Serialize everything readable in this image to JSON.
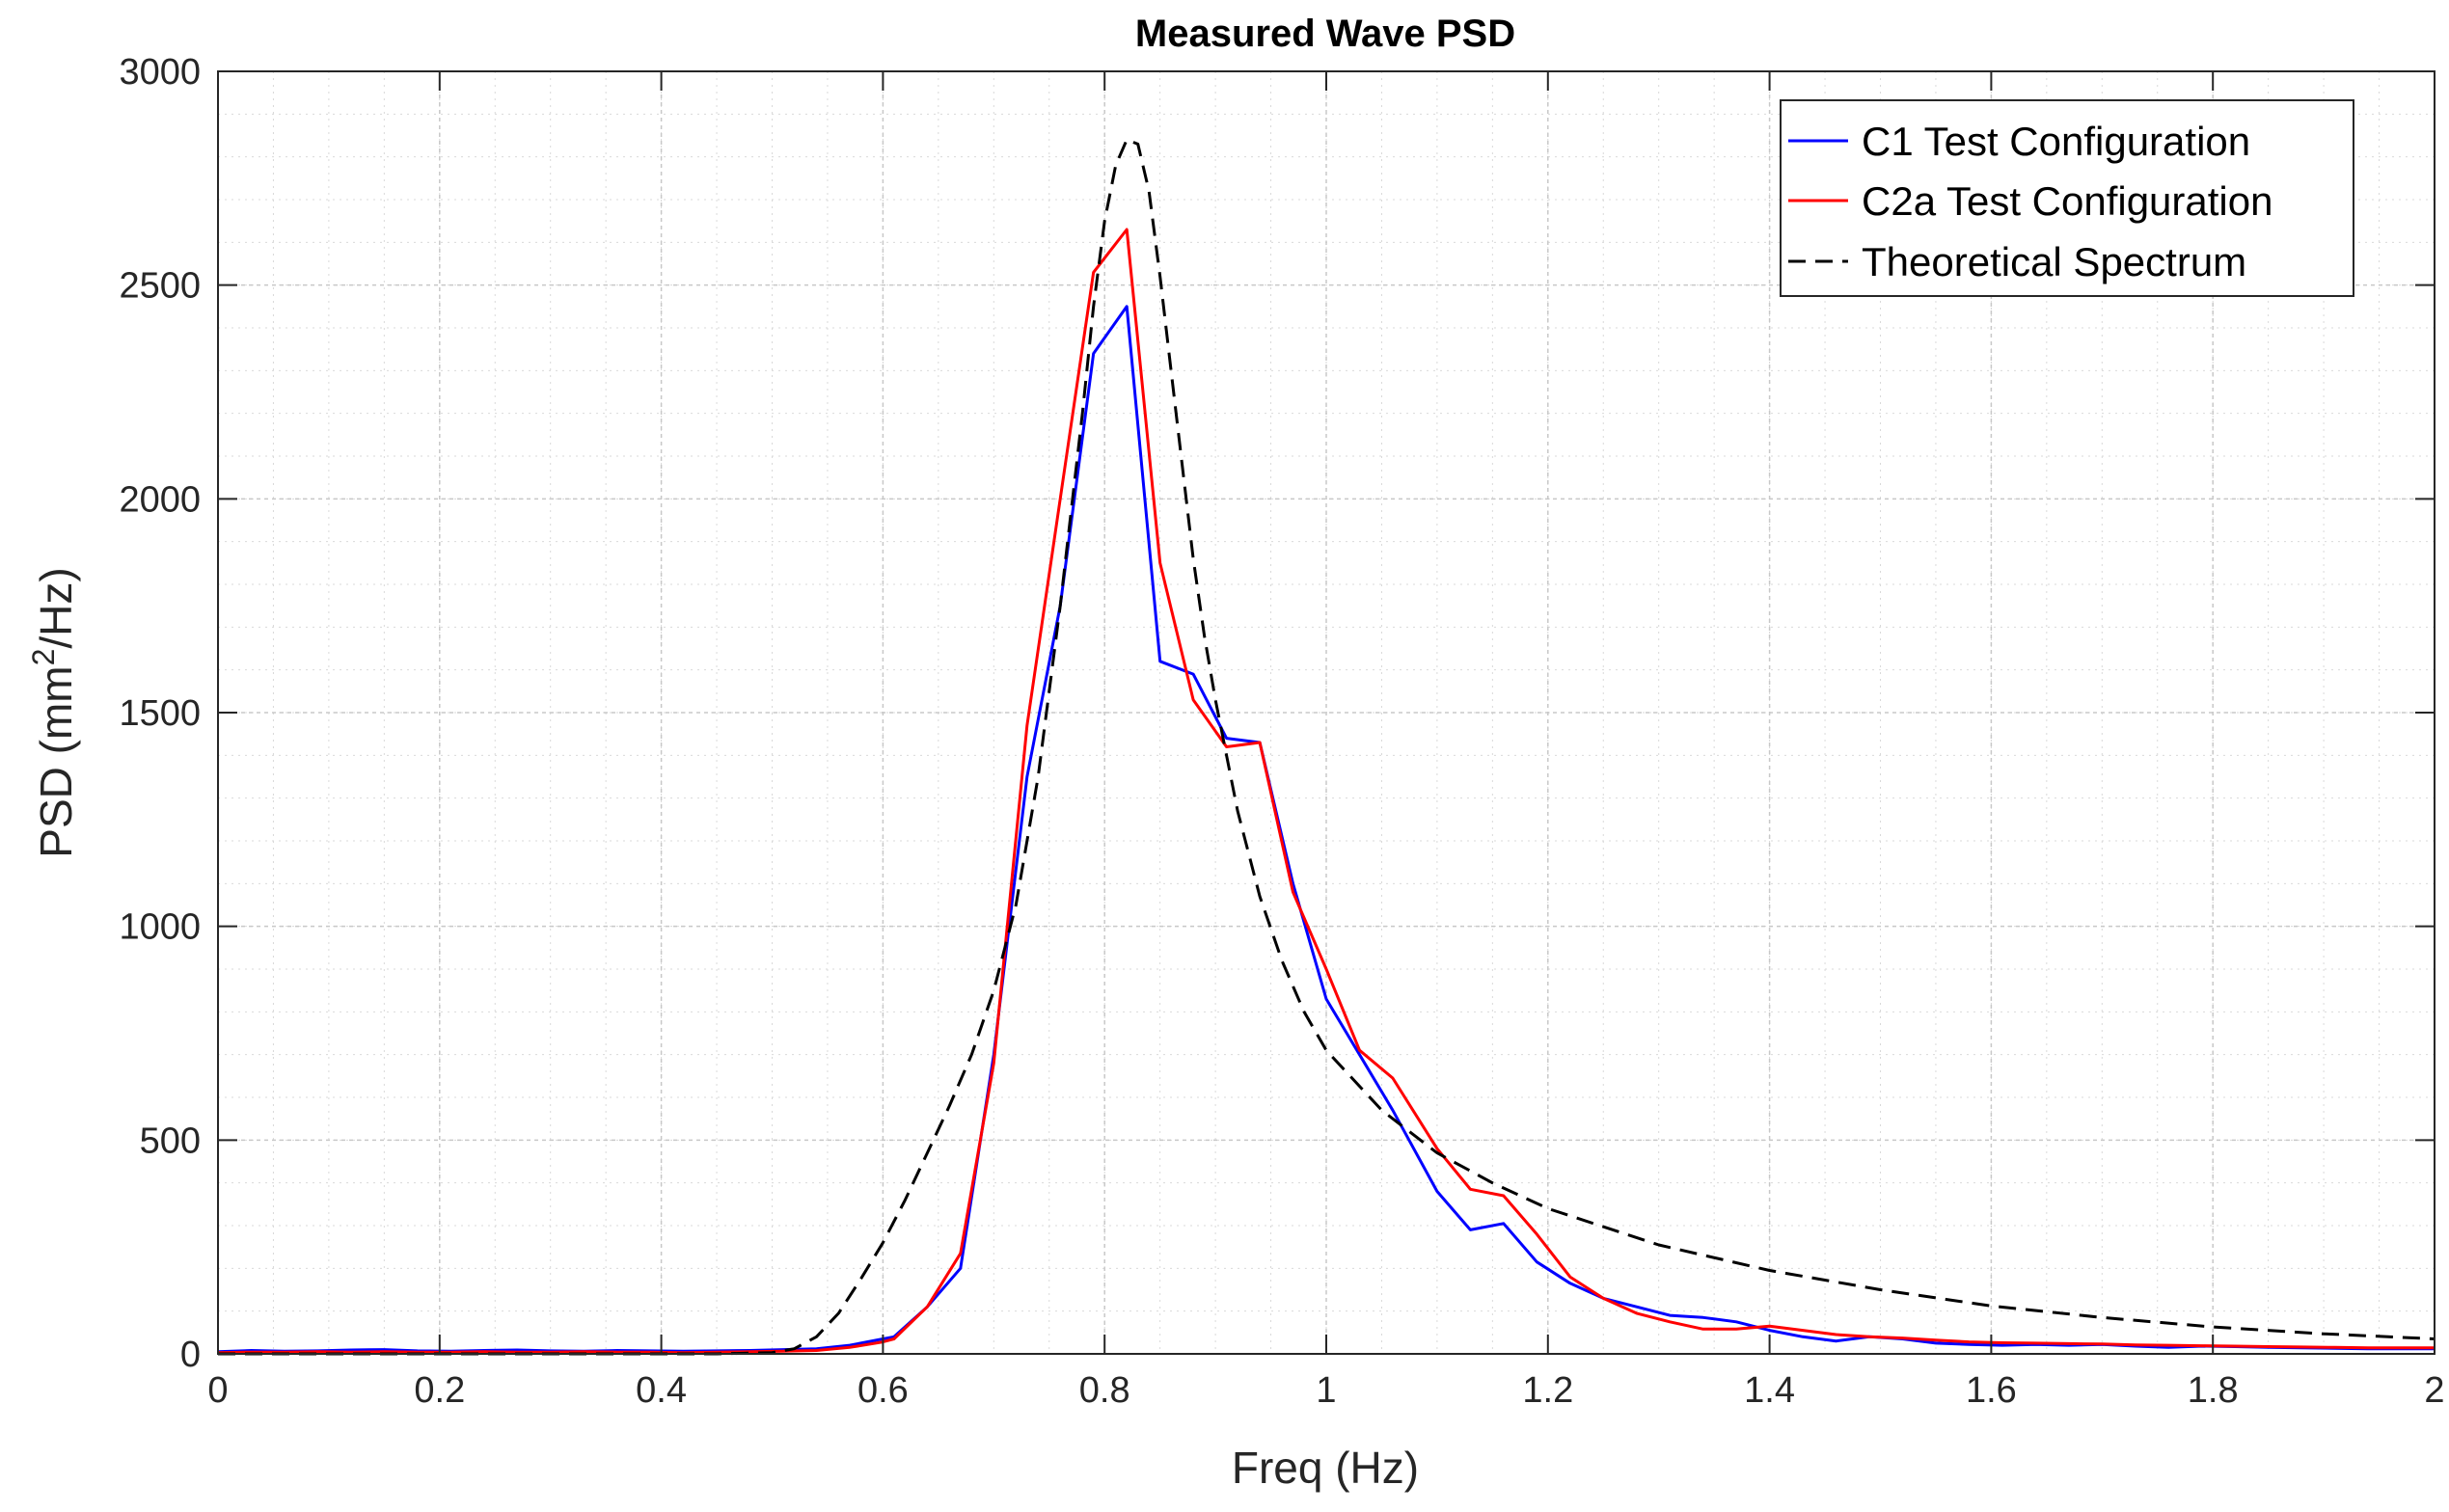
{
  "chart_data": {
    "type": "line",
    "title": "Measured Wave PSD",
    "xlabel": "Freq (Hz)",
    "ylabel": {
      "base": "PSD (mm",
      "sup": "2",
      "tail": "/Hz)"
    },
    "xlim": [
      0,
      2
    ],
    "ylim": [
      0,
      3000
    ],
    "xticks": [
      0,
      0.2,
      0.4,
      0.6,
      0.8,
      1,
      1.2,
      1.4,
      1.6,
      1.8,
      2
    ],
    "xtick_labels": [
      "0",
      "0.2",
      "0.4",
      "0.6",
      "0.8",
      "1",
      "1.2",
      "1.4",
      "1.6",
      "1.8",
      "2"
    ],
    "yticks": [
      0,
      500,
      1000,
      1500,
      2000,
      2500,
      3000
    ],
    "ytick_labels": [
      "0",
      "500",
      "1000",
      "1500",
      "2000",
      "2500",
      "3000"
    ],
    "grid": true,
    "minor_grid": true,
    "legend_position": "top-right",
    "series": [
      {
        "name": "C1 Test Configuration",
        "color": "#0000ff",
        "dash": "solid",
        "x": [
          0,
          0.03,
          0.06,
          0.09,
          0.12,
          0.15,
          0.18,
          0.21,
          0.24,
          0.27,
          0.3,
          0.33,
          0.36,
          0.39,
          0.42,
          0.45,
          0.48,
          0.51,
          0.54,
          0.57,
          0.6,
          0.61,
          0.64,
          0.67,
          0.7,
          0.73,
          0.76,
          0.79,
          0.82,
          0.85,
          0.88,
          0.91,
          0.94,
          0.97,
          1.0,
          1.03,
          1.06,
          1.1,
          1.13,
          1.16,
          1.19,
          1.22,
          1.25,
          1.28,
          1.31,
          1.34,
          1.37,
          1.4,
          1.43,
          1.46,
          1.49,
          1.52,
          1.55,
          1.58,
          1.61,
          1.64,
          1.67,
          1.7,
          1.73,
          1.76,
          1.79,
          1.82,
          1.85,
          1.88,
          1.91,
          1.94,
          1.97,
          2.0
        ],
        "y": [
          5,
          8,
          6,
          7,
          9,
          10,
          7,
          6,
          8,
          9,
          7,
          6,
          8,
          7,
          6,
          7,
          8,
          10,
          12,
          20,
          35,
          40,
          110,
          200,
          700,
          1350,
          1750,
          2340,
          2450,
          1620,
          1590,
          1440,
          1430,
          1100,
          830,
          700,
          570,
          380,
          290,
          305,
          215,
          165,
          130,
          110,
          90,
          85,
          75,
          55,
          40,
          30,
          40,
          35,
          25,
          22,
          20,
          22,
          20,
          22,
          18,
          15,
          18,
          17,
          15,
          14,
          13,
          12,
          12,
          12
        ]
      },
      {
        "name": "C2a Test Configuration",
        "color": "#ff0000",
        "dash": "solid",
        "x": [
          0,
          0.03,
          0.06,
          0.09,
          0.12,
          0.15,
          0.18,
          0.21,
          0.24,
          0.27,
          0.3,
          0.33,
          0.36,
          0.39,
          0.42,
          0.45,
          0.48,
          0.51,
          0.54,
          0.57,
          0.6,
          0.61,
          0.64,
          0.67,
          0.7,
          0.73,
          0.76,
          0.79,
          0.82,
          0.85,
          0.88,
          0.91,
          0.94,
          0.97,
          1.0,
          1.03,
          1.06,
          1.1,
          1.13,
          1.16,
          1.19,
          1.22,
          1.25,
          1.28,
          1.31,
          1.34,
          1.37,
          1.4,
          1.43,
          1.46,
          1.49,
          1.52,
          1.55,
          1.58,
          1.61,
          1.64,
          1.67,
          1.7,
          1.73,
          1.76,
          1.79,
          1.82,
          1.85,
          1.88,
          1.91,
          1.94,
          1.97,
          2.0
        ],
        "y": [
          3,
          4,
          4,
          5,
          4,
          5,
          4,
          4,
          5,
          4,
          4,
          5,
          4,
          4,
          3,
          4,
          5,
          6,
          8,
          15,
          28,
          35,
          110,
          235,
          680,
          1470,
          2000,
          2530,
          2630,
          1850,
          1530,
          1420,
          1430,
          1080,
          900,
          710,
          645,
          480,
          385,
          370,
          280,
          180,
          130,
          95,
          75,
          58,
          58,
          65,
          55,
          45,
          40,
          37,
          32,
          28,
          26,
          25,
          24,
          23,
          21,
          20,
          19,
          18,
          17,
          16,
          15,
          14,
          14,
          14
        ]
      },
      {
        "name": "Theoretical Spectrum",
        "color": "#000000",
        "dash": "dashed",
        "x": [
          0,
          0.1,
          0.2,
          0.3,
          0.4,
          0.45,
          0.5,
          0.52,
          0.54,
          0.56,
          0.58,
          0.6,
          0.62,
          0.64,
          0.66,
          0.68,
          0.7,
          0.72,
          0.74,
          0.76,
          0.78,
          0.79,
          0.8,
          0.81,
          0.82,
          0.83,
          0.84,
          0.85,
          0.86,
          0.87,
          0.88,
          0.89,
          0.9,
          0.92,
          0.94,
          0.96,
          0.98,
          1.0,
          1.05,
          1.1,
          1.15,
          1.2,
          1.3,
          1.4,
          1.5,
          1.6,
          1.7,
          1.8,
          1.9,
          2.0
        ],
        "y": [
          0,
          0,
          0,
          0,
          0,
          0,
          3,
          12,
          40,
          95,
          175,
          260,
          360,
          470,
          580,
          700,
          850,
          1050,
          1350,
          1750,
          2200,
          2450,
          2650,
          2780,
          2840,
          2830,
          2720,
          2520,
          2300,
          2080,
          1860,
          1680,
          1530,
          1270,
          1070,
          920,
          800,
          710,
          570,
          470,
          400,
          340,
          255,
          195,
          150,
          112,
          85,
          63,
          47,
          35
        ]
      }
    ]
  }
}
